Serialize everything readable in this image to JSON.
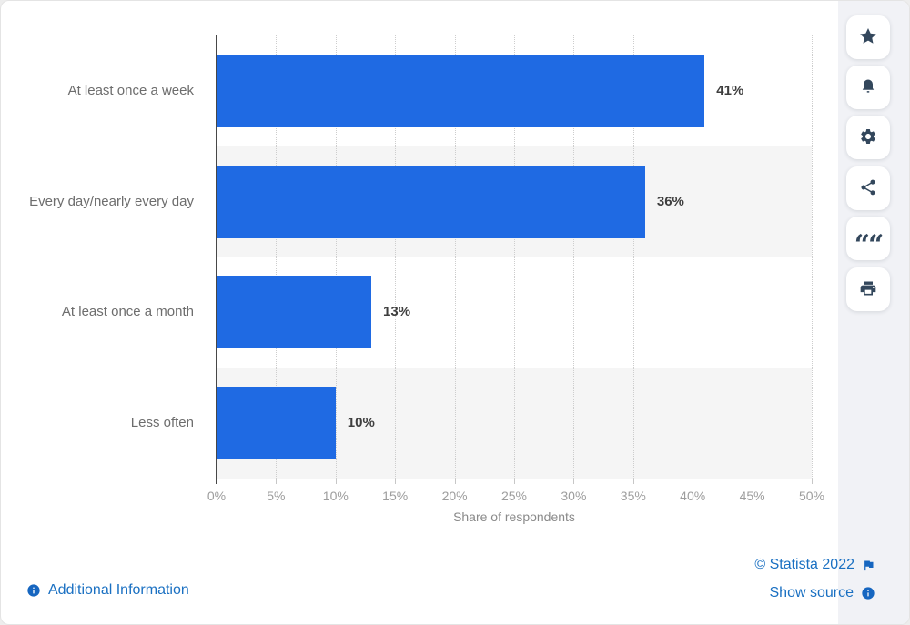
{
  "chart_data": {
    "type": "bar",
    "orientation": "horizontal",
    "categories": [
      "At least once a week",
      "Every day/nearly every day",
      "At least once a month",
      "Less often"
    ],
    "values": [
      41,
      36,
      13,
      10
    ],
    "value_labels": [
      "41%",
      "36%",
      "13%",
      "10%"
    ],
    "xlabel": "Share of respondents",
    "ylabel": "",
    "xlim": [
      0,
      50
    ],
    "x_tick_step": 5,
    "x_tick_labels": [
      "0%",
      "5%",
      "10%",
      "15%",
      "20%",
      "25%",
      "30%",
      "35%",
      "40%",
      "45%",
      "50%"
    ],
    "grid": "vertical-dotted",
    "legend": "none",
    "bar_color": "#1f6ae3",
    "row_stripe_color": "#f5f5f5"
  },
  "toolbar": {
    "buttons": [
      {
        "name": "favorite",
        "icon": "star-icon"
      },
      {
        "name": "notifications",
        "icon": "bell-icon"
      },
      {
        "name": "settings",
        "icon": "gear-icon"
      },
      {
        "name": "share",
        "icon": "share-icon"
      },
      {
        "name": "cite",
        "icon": "quote-icon"
      },
      {
        "name": "print",
        "icon": "printer-icon"
      }
    ]
  },
  "footer": {
    "additional_information": "Additional Information",
    "copyright": "© Statista 2022",
    "show_source": "Show source"
  },
  "colors": {
    "bar": "#1f6ae3",
    "stripe": "#f5f5f5",
    "link": "#1a70c2",
    "icon_navy": "#33475c",
    "sidebar_bg": "#f1f2f6",
    "axis_line": "#474747"
  }
}
